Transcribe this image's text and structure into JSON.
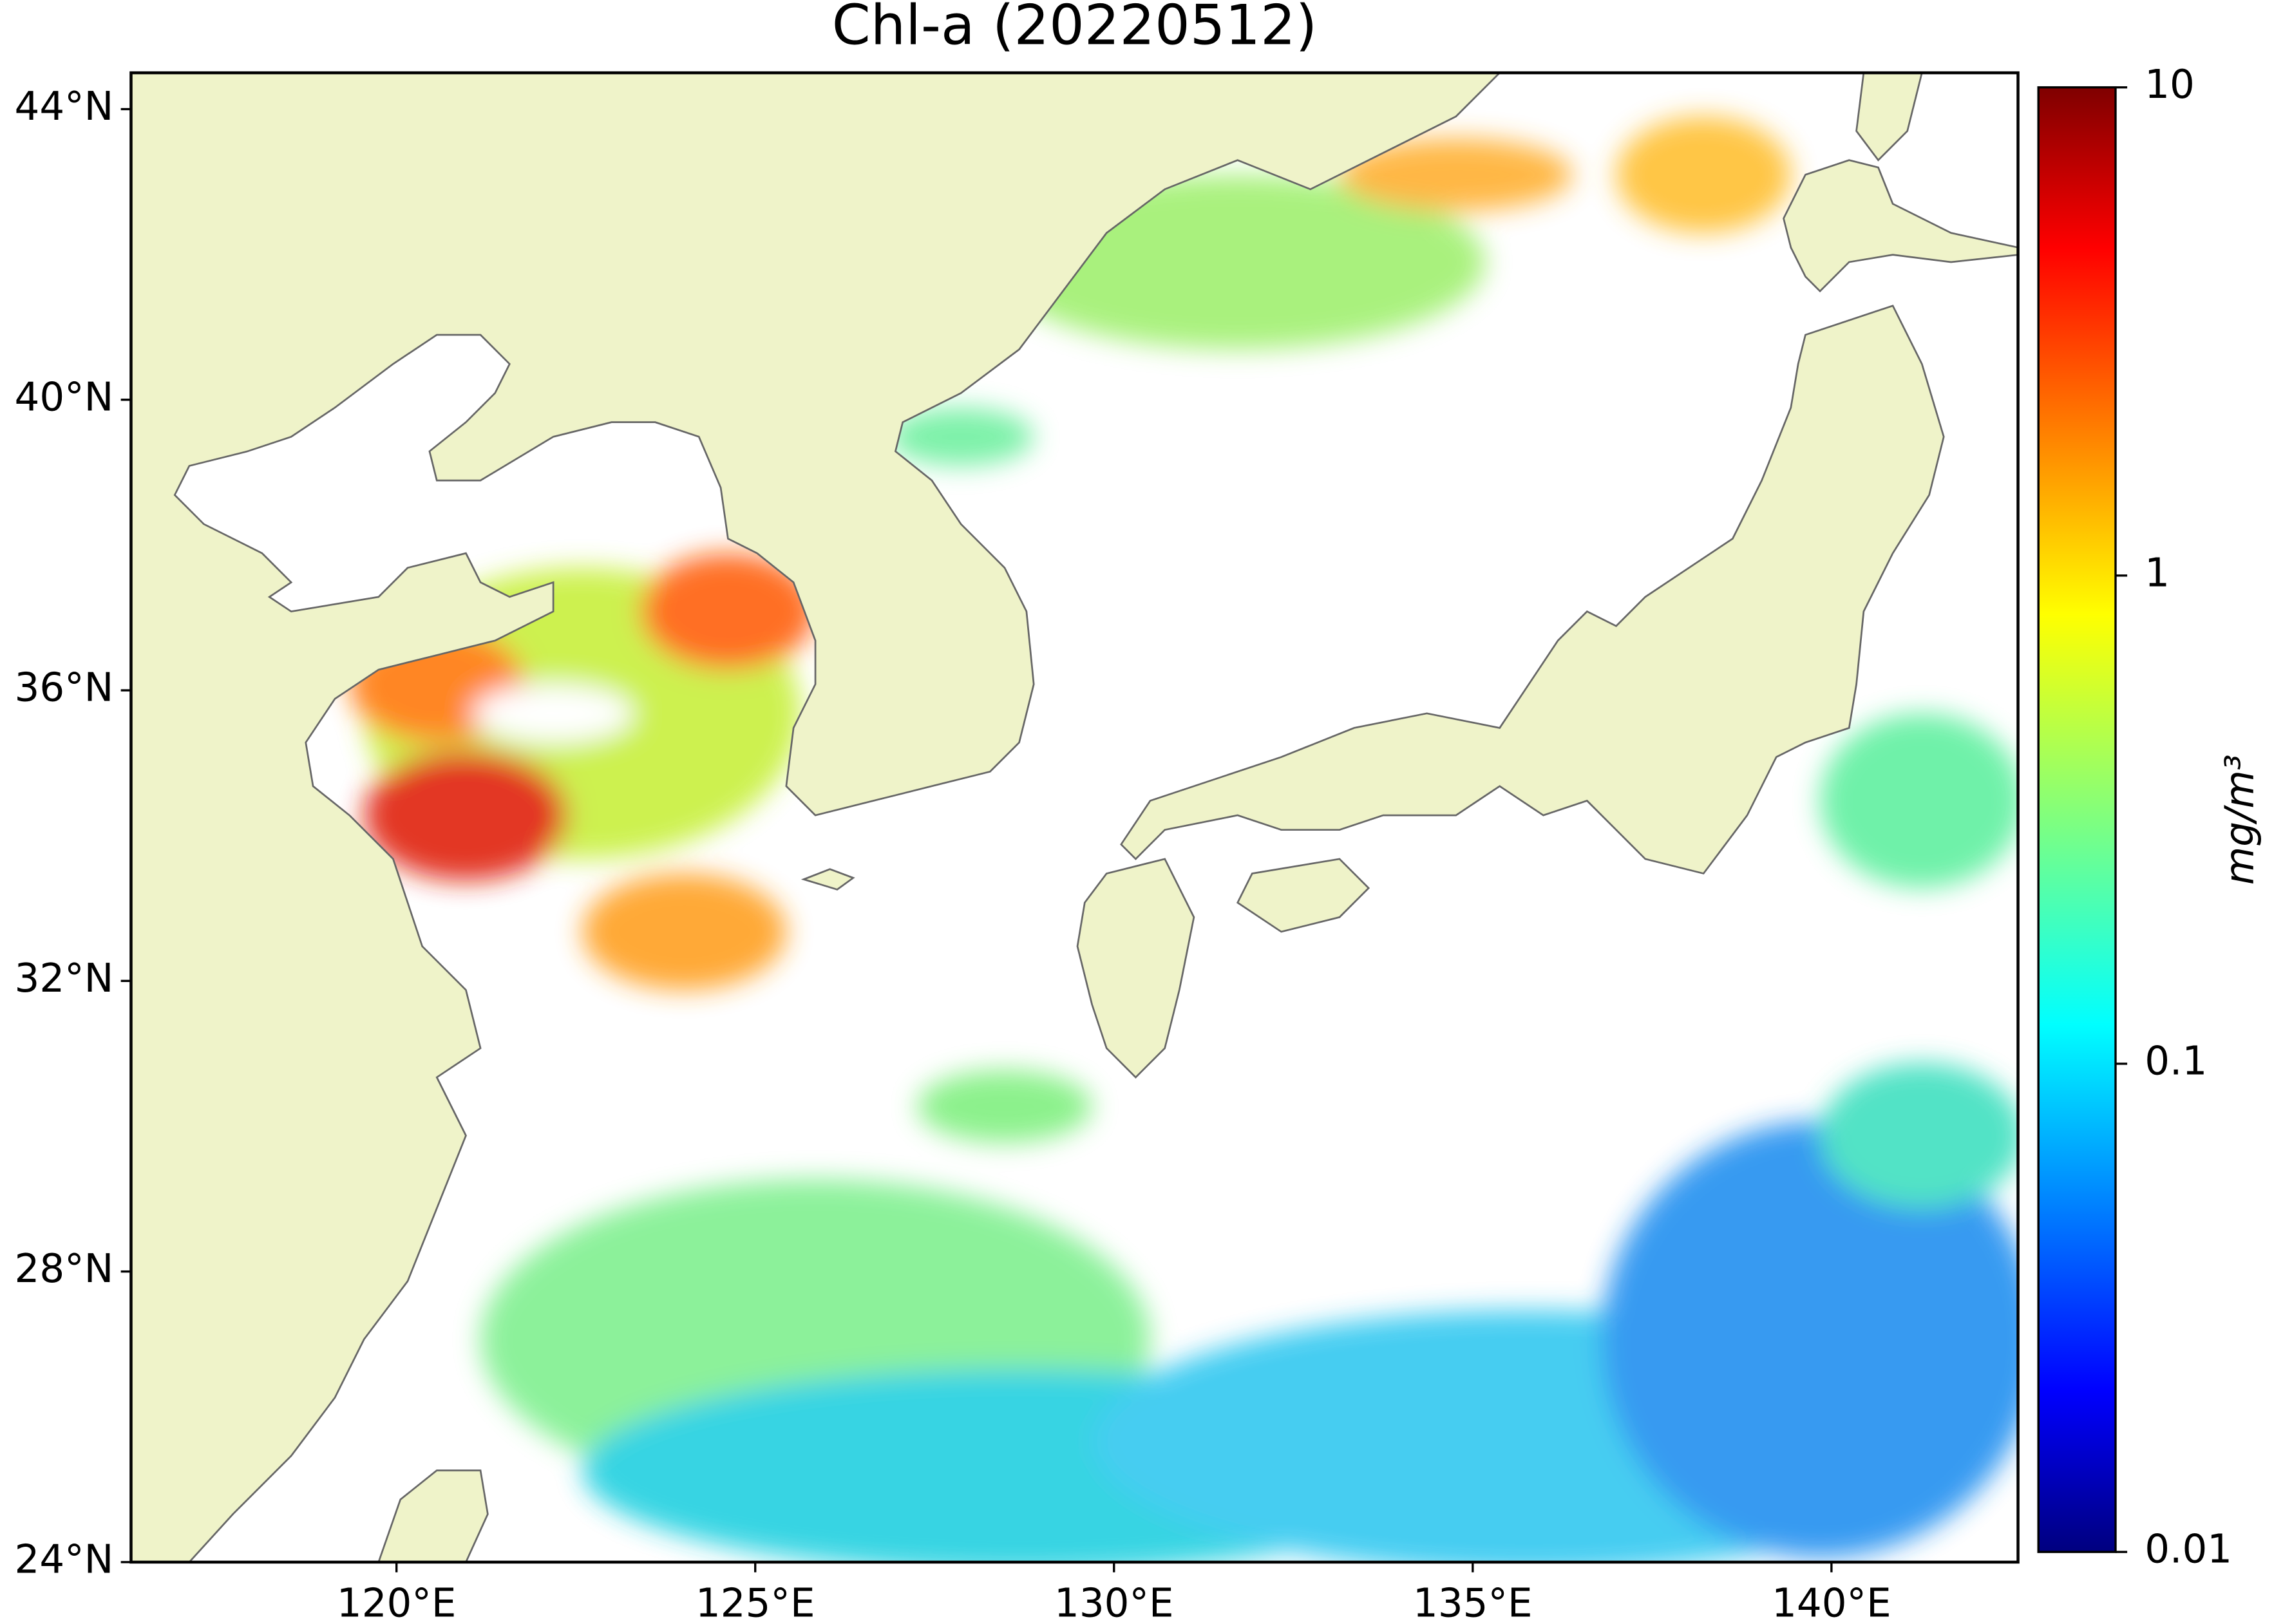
{
  "chart_data": {
    "type": "map",
    "title": "Chl-a (20220512)",
    "xlim": [
      116.3,
      142.6
    ],
    "ylim": [
      24,
      44.5
    ],
    "xticks": [
      {
        "value": 120,
        "label": "120°E"
      },
      {
        "value": 125,
        "label": "125°E"
      },
      {
        "value": 130,
        "label": "130°E"
      },
      {
        "value": 135,
        "label": "135°E"
      },
      {
        "value": 140,
        "label": "140°E"
      }
    ],
    "yticks": [
      {
        "value": 24,
        "label": "24°N"
      },
      {
        "value": 28,
        "label": "28°N"
      },
      {
        "value": 32,
        "label": "32°N"
      },
      {
        "value": 36,
        "label": "36°N"
      },
      {
        "value": 40,
        "label": "40°N"
      },
      {
        "value": 44,
        "label": "44°N"
      }
    ],
    "colorbar": {
      "label": "mg/m³",
      "scale": "log",
      "lim": [
        0.01,
        10
      ],
      "ticks": [
        0.01,
        0.1,
        1,
        10
      ],
      "colormap": "jet"
    }
  }
}
